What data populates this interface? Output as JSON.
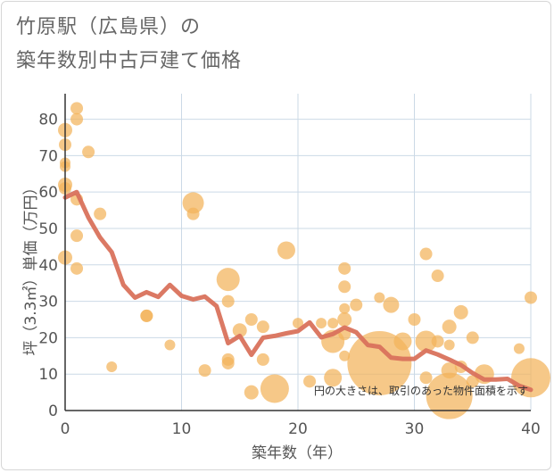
{
  "title": {
    "line1": "竹原駅（広島県）の",
    "line2": "築年数別中古戸建て価格"
  },
  "colors": {
    "bubble": "#f2b35a",
    "line": "#d9725c",
    "grid": "#cbd9e6",
    "text": "#555555"
  },
  "chart_data": {
    "type": "scatter",
    "xlabel": "築年数（年）",
    "ylabel": "坪（3.3㎡）単価（万円）",
    "note": "円の大きさは、取引のあった物件面積を示す",
    "xlim": [
      0,
      40
    ],
    "ylim": [
      0,
      87
    ],
    "xticks": [
      0,
      10,
      20,
      30,
      40
    ],
    "yticks": [
      0,
      10,
      20,
      30,
      40,
      50,
      60,
      70,
      80
    ],
    "bubbles": [
      {
        "x": 0,
        "y": 77,
        "s": 8
      },
      {
        "x": 0,
        "y": 73,
        "s": 7
      },
      {
        "x": 0,
        "y": 68,
        "s": 6
      },
      {
        "x": 0,
        "y": 67,
        "s": 6
      },
      {
        "x": 0,
        "y": 62,
        "s": 8
      },
      {
        "x": 0,
        "y": 61,
        "s": 7
      },
      {
        "x": 0,
        "y": 42,
        "s": 8
      },
      {
        "x": 1,
        "y": 83,
        "s": 7
      },
      {
        "x": 1,
        "y": 80,
        "s": 7
      },
      {
        "x": 1,
        "y": 58,
        "s": 7
      },
      {
        "x": 1,
        "y": 48,
        "s": 7
      },
      {
        "x": 1,
        "y": 39,
        "s": 7
      },
      {
        "x": 2,
        "y": 71,
        "s": 7
      },
      {
        "x": 3,
        "y": 54,
        "s": 7
      },
      {
        "x": 4,
        "y": 12,
        "s": 6
      },
      {
        "x": 7,
        "y": 26,
        "s": 7
      },
      {
        "x": 7,
        "y": 26,
        "s": 7
      },
      {
        "x": 9,
        "y": 18,
        "s": 6
      },
      {
        "x": 11,
        "y": 57,
        "s": 12
      },
      {
        "x": 11,
        "y": 54,
        "s": 7
      },
      {
        "x": 12,
        "y": 11,
        "s": 7
      },
      {
        "x": 14,
        "y": 36,
        "s": 13
      },
      {
        "x": 14,
        "y": 30,
        "s": 7
      },
      {
        "x": 14,
        "y": 14,
        "s": 7
      },
      {
        "x": 14,
        "y": 13,
        "s": 7
      },
      {
        "x": 15,
        "y": 22,
        "s": 8
      },
      {
        "x": 16,
        "y": 25,
        "s": 7
      },
      {
        "x": 16,
        "y": 5,
        "s": 8
      },
      {
        "x": 17,
        "y": 23,
        "s": 7
      },
      {
        "x": 17,
        "y": 14,
        "s": 7
      },
      {
        "x": 18,
        "y": 6,
        "s": 16
      },
      {
        "x": 19,
        "y": 44,
        "s": 10
      },
      {
        "x": 20,
        "y": 24,
        "s": 6
      },
      {
        "x": 21,
        "y": 8,
        "s": 7
      },
      {
        "x": 22,
        "y": 24,
        "s": 6
      },
      {
        "x": 23,
        "y": 24,
        "s": 6
      },
      {
        "x": 23,
        "y": 19,
        "s": 13
      },
      {
        "x": 23,
        "y": 9,
        "s": 10
      },
      {
        "x": 24,
        "y": 39,
        "s": 7
      },
      {
        "x": 24,
        "y": 34,
        "s": 7
      },
      {
        "x": 24,
        "y": 28,
        "s": 6
      },
      {
        "x": 24,
        "y": 25,
        "s": 8
      },
      {
        "x": 24,
        "y": 21,
        "s": 7
      },
      {
        "x": 24,
        "y": 15,
        "s": 6
      },
      {
        "x": 25,
        "y": 29,
        "s": 7
      },
      {
        "x": 27,
        "y": 31,
        "s": 6
      },
      {
        "x": 27,
        "y": 13,
        "s": 36
      },
      {
        "x": 28,
        "y": 29,
        "s": 9
      },
      {
        "x": 29,
        "y": 19,
        "s": 10
      },
      {
        "x": 30,
        "y": 25,
        "s": 7
      },
      {
        "x": 31,
        "y": 43,
        "s": 7
      },
      {
        "x": 31,
        "y": 19,
        "s": 12
      },
      {
        "x": 31,
        "y": 9,
        "s": 7
      },
      {
        "x": 32,
        "y": 37,
        "s": 7
      },
      {
        "x": 32,
        "y": 19,
        "s": 7
      },
      {
        "x": 33,
        "y": 23,
        "s": 8
      },
      {
        "x": 33,
        "y": 18,
        "s": 6
      },
      {
        "x": 33,
        "y": 11,
        "s": 9
      },
      {
        "x": 33,
        "y": 4,
        "s": 26
      },
      {
        "x": 34,
        "y": 27,
        "s": 8
      },
      {
        "x": 34,
        "y": 12,
        "s": 7
      },
      {
        "x": 35,
        "y": 20,
        "s": 7
      },
      {
        "x": 35,
        "y": 8,
        "s": 7
      },
      {
        "x": 36,
        "y": 10,
        "s": 11
      },
      {
        "x": 39,
        "y": 17,
        "s": 6
      },
      {
        "x": 40,
        "y": 31,
        "s": 7
      },
      {
        "x": 40,
        "y": 9,
        "s": 22
      }
    ],
    "trend_line": {
      "x": [
        0,
        1,
        2,
        3,
        4,
        5,
        6,
        7,
        8,
        9,
        10,
        11,
        12,
        13,
        14,
        15,
        16,
        17,
        18,
        19,
        20,
        21,
        22,
        23,
        24,
        25,
        26,
        27,
        28,
        29,
        30,
        31,
        32,
        33,
        34,
        35,
        36,
        37,
        38,
        39,
        40
      ],
      "y": [
        58.5,
        60,
        53,
        47.5,
        43.5,
        34.5,
        31,
        32.5,
        31.2,
        34.5,
        31.5,
        30.5,
        31.3,
        28.7,
        18.5,
        20.5,
        15.3,
        20,
        20.5,
        21.2,
        21.8,
        24.2,
        20.1,
        21,
        22.8,
        21.5,
        18,
        17.5,
        14.5,
        14.2,
        14.2,
        16.5,
        15.4,
        14,
        12.5,
        10.3,
        8.5,
        8.5,
        8.7,
        6.8,
        5.7
      ]
    }
  }
}
